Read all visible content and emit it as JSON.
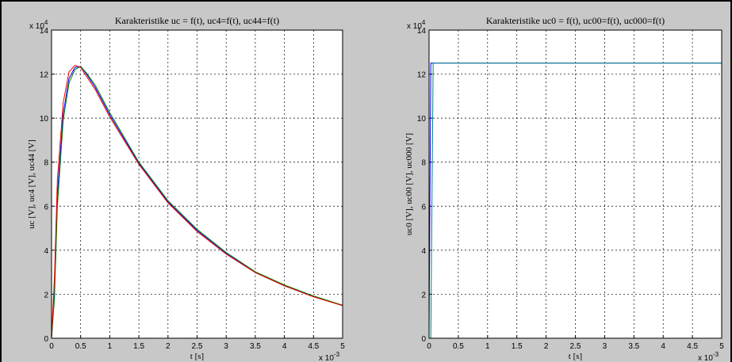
{
  "chart_data": [
    {
      "type": "line",
      "title": "Karakteristike uc = f(t), uc4=f(t), uc44=f(t)",
      "xlabel": "t [s]",
      "ylabel": "uc [V], uc4 [V], uc44 [V]",
      "x_multiplier": "x 10",
      "x_multiplier_exp": "-3",
      "y_multiplier": "x 10",
      "y_multiplier_exp": "4",
      "x": [
        0,
        0.05,
        0.1,
        0.2,
        0.3,
        0.4,
        0.5,
        0.6,
        0.75,
        1,
        1.5,
        2,
        2.5,
        3,
        3.5,
        4,
        4.5,
        5
      ],
      "series": [
        {
          "color": "#0000ff",
          "values": [
            0,
            2.2,
            6.5,
            10.2,
            11.8,
            12.3,
            12.35,
            12.0,
            11.4,
            10.15,
            7.95,
            6.2,
            4.9,
            3.85,
            3.0,
            2.4,
            1.9,
            1.5
          ]
        },
        {
          "color": "#008000",
          "values": [
            0,
            1.8,
            6.0,
            9.9,
            11.6,
            12.2,
            12.35,
            12.05,
            11.5,
            10.25,
            8.0,
            6.25,
            4.95,
            3.9,
            3.02,
            2.42,
            1.92,
            1.5
          ]
        },
        {
          "color": "#ff0000",
          "values": [
            0,
            2.8,
            7.2,
            10.7,
            12.1,
            12.4,
            12.3,
            11.9,
            11.3,
            10.05,
            7.9,
            6.15,
            4.85,
            3.82,
            2.98,
            2.38,
            1.88,
            1.48
          ]
        }
      ],
      "xlim": [
        0,
        5
      ],
      "xticks": [
        0,
        0.5,
        1,
        1.5,
        2,
        2.5,
        3,
        3.5,
        4,
        4.5,
        5
      ],
      "ylim": [
        0,
        14
      ],
      "yticks": [
        0,
        2,
        4,
        6,
        8,
        10,
        12,
        14
      ],
      "grid": true
    },
    {
      "type": "line",
      "title": "Karakteristike uc0 = f(t), uc00=f(t), uc000=f(t)",
      "xlabel": "t [s]",
      "ylabel": "uc0 [V], uc00 [V], uc000 [V]",
      "x_multiplier": "x 10",
      "x_multiplier_exp": "-3",
      "y_multiplier": "x 10",
      "y_multiplier_exp": "4",
      "x": [
        0,
        0.03,
        0.07,
        5
      ],
      "series": [
        {
          "color": "#0000ff",
          "values": [
            0,
            12.5,
            12.5,
            12.5
          ]
        },
        {
          "color": "#008080",
          "values": [
            0,
            0,
            12.5,
            12.5
          ]
        }
      ],
      "xlim": [
        0,
        5
      ],
      "xticks": [
        0,
        0.5,
        1,
        1.5,
        2,
        2.5,
        3,
        3.5,
        4,
        4.5,
        5
      ],
      "ylim": [
        0,
        14
      ],
      "yticks": [
        0,
        2,
        4,
        6,
        8,
        10,
        12,
        14
      ],
      "grid": true
    }
  ]
}
